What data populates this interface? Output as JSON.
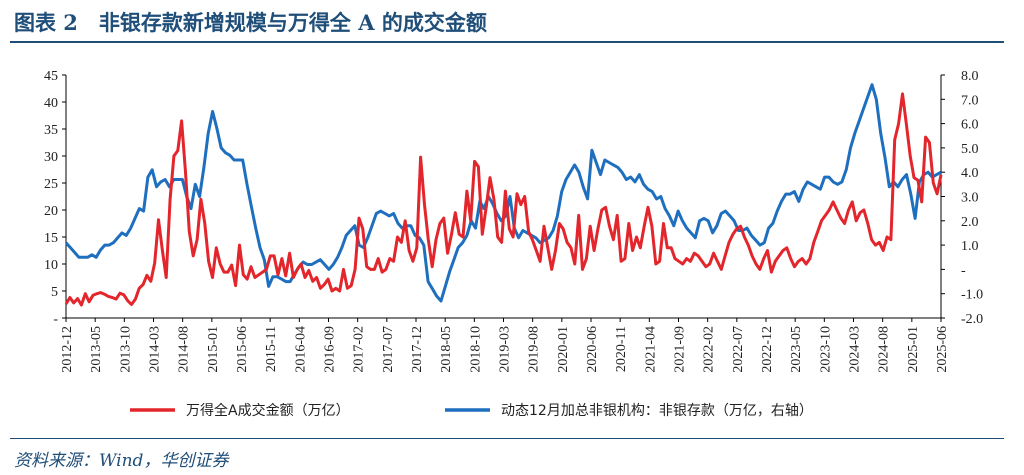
{
  "title": "图表 2　非银存款新增规模与万得全 A 的成交金额",
  "source": "资料来源：Wind，华创证券",
  "colors": {
    "title": "#1f4e79",
    "series_red": "#e3262c",
    "series_blue": "#1f6fbf"
  },
  "chart_data": {
    "type": "line",
    "x_ticks": [
      "2012-12",
      "2013-05",
      "2013-10",
      "2014-03",
      "2014-08",
      "2015-01",
      "2015-06",
      "2015-11",
      "2016-04",
      "2016-09",
      "2017-02",
      "2017-07",
      "2017-12",
      "2018-05",
      "2018-10",
      "2019-03",
      "2019-08",
      "2020-01",
      "2020-06",
      "2020-11",
      "2021-04",
      "2021-09",
      "2022-02",
      "2022-07",
      "2022-12",
      "2023-05",
      "2023-10",
      "2024-03",
      "2024-08",
      "2025-01",
      "2025-06"
    ],
    "y_left": {
      "min": 0,
      "max": 45,
      "ticks": [
        "-",
        "5",
        "10",
        "15",
        "20",
        "25",
        "30",
        "35",
        "40",
        "45"
      ]
    },
    "y_right": {
      "min": -2.0,
      "max": 8.0,
      "ticks": [
        "-2.0",
        "-1.0",
        "-",
        "1.0",
        "2.0",
        "3.0",
        "4.0",
        "5.0",
        "6.0",
        "7.0",
        "8.0"
      ]
    },
    "series": [
      {
        "name": "万得全A成交金额（万亿）",
        "axis": "left",
        "x_start": "2012-12",
        "values": [
          2.6,
          3.8,
          2.8,
          3.6,
          2.4,
          4.5,
          3.0,
          4.2,
          4.5,
          4.7,
          4.4,
          4.0,
          3.8,
          3.5,
          4.6,
          4.3,
          3.2,
          2.5,
          3.5,
          5.5,
          6.2,
          7.9,
          6.8,
          10.2,
          18.2,
          12.5,
          7.5,
          22.0,
          30.0,
          31.0,
          36.5,
          27.0,
          16.0,
          11.5,
          14.5,
          22.0,
          17.5,
          10.5,
          7.5,
          13.0,
          10.0,
          8.5,
          8.5,
          9.8,
          6.0,
          13.5,
          8.0,
          7.2,
          9.5,
          7.5,
          8.0,
          8.5,
          9.0,
          11.5,
          11.5,
          8.0,
          11.0,
          7.8,
          12.0,
          7.5,
          9.0,
          10.0,
          7.5,
          8.8,
          6.8,
          7.5,
          5.5,
          6.2,
          7.2,
          5.0,
          5.5,
          5.0,
          9.0,
          5.5,
          6.0,
          9.0,
          18.5,
          16.5,
          9.5,
          9.0,
          9.0,
          11.0,
          8.5,
          9.0,
          11.0,
          10.5,
          15.0,
          14.0,
          18.0,
          12.5,
          10.5,
          13.0,
          29.8,
          21.0,
          14.5,
          9.5,
          14.5,
          17.5,
          18.5,
          12.0,
          15.5,
          19.5,
          15.5,
          15.0,
          23.5,
          18.0,
          29.0,
          28.0,
          15.5,
          20.5,
          26.0,
          22.0,
          15.0,
          14.0,
          23.5,
          16.5,
          15.0,
          23.0,
          21.0,
          22.5,
          16.0,
          14.5,
          12.5,
          10.5,
          17.0,
          13.0,
          9.0,
          12.5,
          17.5,
          16.5,
          14.0,
          13.0,
          10.0,
          19.0,
          9.0,
          11.0,
          17.0,
          12.5,
          16.5,
          20.0,
          20.5,
          17.0,
          14.5,
          19.0,
          10.5,
          11.0,
          17.5,
          12.5,
          15.0,
          13.0,
          17.0,
          20.5,
          17.0,
          10.0,
          10.5,
          17.5,
          13.0,
          13.0,
          11.0,
          10.5,
          10.0,
          11.0,
          10.5,
          12.0,
          11.5,
          10.5,
          9.5,
          10.0,
          12.0,
          10.5,
          9.0,
          11.5,
          14.0,
          15.5,
          16.5,
          17.0,
          15.0,
          13.5,
          11.5,
          10.0,
          9.0,
          11.0,
          12.5,
          8.5,
          10.5,
          11.5,
          12.5,
          13.0,
          11.0,
          9.5,
          10.5,
          11.0,
          10.0,
          11.0,
          14.0,
          16.0,
          18.0,
          19.0,
          20.0,
          21.5,
          20.0,
          18.5,
          17.5,
          20.0,
          21.5,
          18.0,
          19.5,
          20.0,
          17.5,
          14.5,
          13.5,
          14.0,
          12.5,
          15.0,
          14.5,
          33.0,
          36.0,
          41.5,
          36.0,
          30.0,
          26.0,
          25.5,
          21.5,
          33.5,
          32.5,
          25.0,
          23.0,
          26.5
        ]
      },
      {
        "name": "动态12月加总非银机构：非银存款（万亿，右轴）",
        "axis": "right",
        "x_start": "2012-12",
        "values": [
          1.1,
          0.9,
          0.7,
          0.5,
          0.5,
          0.5,
          0.6,
          0.5,
          0.8,
          1.0,
          1.0,
          1.1,
          1.3,
          1.5,
          1.4,
          1.7,
          2.1,
          2.5,
          2.4,
          3.8,
          4.1,
          3.4,
          3.6,
          3.7,
          3.4,
          3.7,
          3.7,
          3.7,
          3.0,
          2.5,
          3.5,
          3.0,
          4.2,
          5.6,
          6.5,
          5.8,
          5.0,
          4.8,
          4.7,
          4.5,
          4.5,
          4.5,
          3.5,
          2.6,
          1.7,
          0.9,
          0.4,
          -0.7,
          -0.3,
          -0.3,
          -0.4,
          -0.5,
          -0.5,
          -0.2,
          0.1,
          0.3,
          0.2,
          0.2,
          0.3,
          0.4,
          0.2,
          0.0,
          0.2,
          0.5,
          0.9,
          1.4,
          1.6,
          1.8,
          1.0,
          0.9,
          1.3,
          1.8,
          2.3,
          2.4,
          2.3,
          2.2,
          2.3,
          1.9,
          1.7,
          1.8,
          1.8,
          1.4,
          1.3,
          1.0,
          -0.5,
          -0.8,
          -1.1,
          -1.3,
          -0.7,
          -0.1,
          0.4,
          0.9,
          1.1,
          1.4,
          2.0,
          1.7,
          2.8,
          2.5,
          3.0,
          2.7,
          2.3,
          2.0,
          2.2,
          3.0,
          1.7,
          1.3,
          1.6,
          1.5,
          1.4,
          1.3,
          1.1,
          1.2,
          1.3,
          1.6,
          2.2,
          3.2,
          3.7,
          4.0,
          4.3,
          4.0,
          3.4,
          2.9,
          4.9,
          4.4,
          3.9,
          4.5,
          4.4,
          4.3,
          4.2,
          4.0,
          3.7,
          3.8,
          3.6,
          3.9,
          3.5,
          3.3,
          3.2,
          2.9,
          3.0,
          2.5,
          2.2,
          1.8,
          2.4,
          2.0,
          1.7,
          1.5,
          1.3,
          2.0,
          2.1,
          2.0,
          1.5,
          1.8,
          2.3,
          2.4,
          2.2,
          2.0,
          1.6,
          1.6,
          1.7,
          1.4,
          1.2,
          1.0,
          1.1,
          1.7,
          1.9,
          2.4,
          2.8,
          3.1,
          3.1,
          3.2,
          2.8,
          3.3,
          3.6,
          3.5,
          3.4,
          3.3,
          3.8,
          3.8,
          3.6,
          3.5,
          3.6,
          4.1,
          5.0,
          5.6,
          6.1,
          6.6,
          7.1,
          7.6,
          7.0,
          5.6,
          4.6,
          3.4,
          3.6,
          3.4,
          3.7,
          3.9,
          3.1,
          2.1,
          3.6,
          3.9,
          4.0,
          3.8,
          3.9,
          4.0
        ]
      }
    ],
    "legend": "bottom",
    "grid": false
  }
}
